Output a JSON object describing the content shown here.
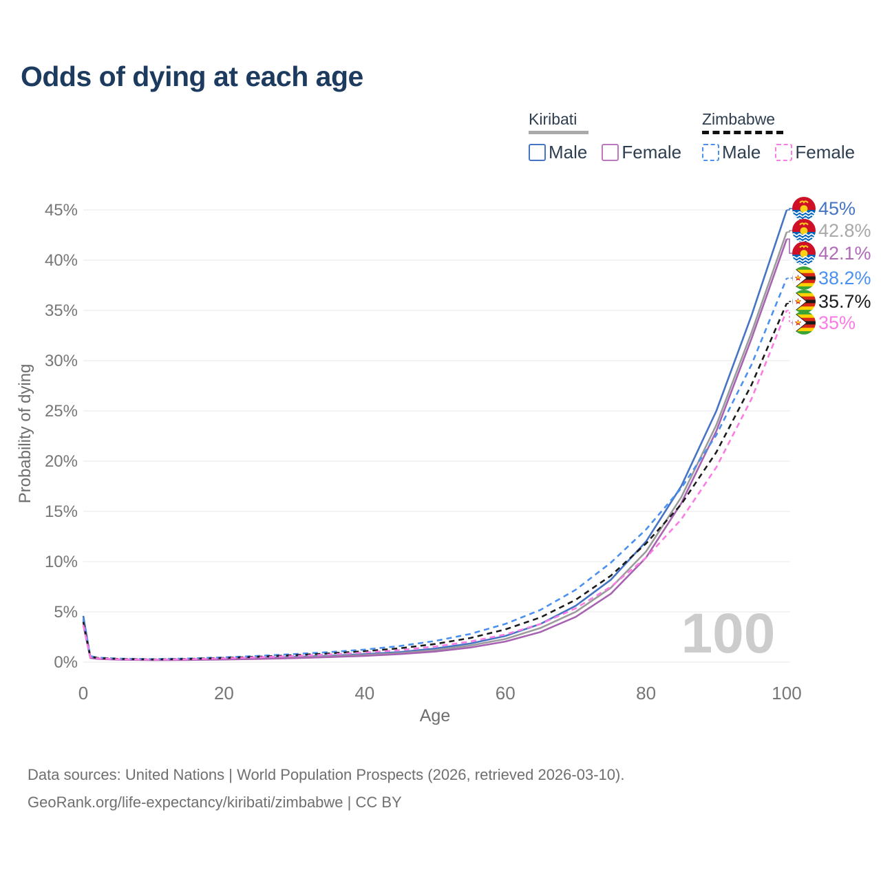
{
  "title": "Odds of dying at each age",
  "legend": {
    "groups": [
      {
        "country": "Kiribati",
        "line_style": "solid",
        "underline_color": "#a9a9a9",
        "items": [
          {
            "label": "Male",
            "color": "#4574c4"
          },
          {
            "label": "Female",
            "color": "#bb78bd"
          }
        ]
      },
      {
        "country": "Zimbabwe",
        "line_style": "dashed",
        "underline_color": "#111111",
        "items": [
          {
            "label": "Male",
            "color": "#4a90ee"
          },
          {
            "label": "Female",
            "color": "#fb7be4"
          }
        ]
      }
    ]
  },
  "footer": {
    "line1": "Data sources: United Nations | World Population Prospects (2026, retrieved 2026-03-10).",
    "line2": "GeoRank.org/life-expectancy/kiribati/zimbabwe | CC BY"
  },
  "chart_data": {
    "type": "line",
    "title": "Odds of dying at each age",
    "xlabel": "Age",
    "ylabel": "Probability of dying",
    "xlim": [
      0,
      100
    ],
    "ylim": [
      0,
      45
    ],
    "xticks": [
      0,
      20,
      40,
      60,
      80,
      100
    ],
    "yticks": [
      0,
      5,
      10,
      15,
      20,
      25,
      30,
      35,
      40,
      45
    ],
    "grid": "horizontal-only",
    "grid_color": "#ececec",
    "tick_color": "#767676",
    "axis_title_color": "#6e6e6e",
    "age_watermark": "100",
    "watermark_color": "#cccccc",
    "legend_position": "top-right",
    "series": [
      {
        "name": "Kiribati Male",
        "country": "Kiribati",
        "sex": "male",
        "color": "#4574c4",
        "dashed": false,
        "flag": "kiribati",
        "end_label": "45%",
        "label_color": "#4574c4",
        "points": [
          [
            0,
            4.6
          ],
          [
            1,
            0.5
          ],
          [
            2,
            0.38
          ],
          [
            5,
            0.28
          ],
          [
            10,
            0.24
          ],
          [
            15,
            0.28
          ],
          [
            20,
            0.34
          ],
          [
            25,
            0.42
          ],
          [
            30,
            0.52
          ],
          [
            35,
            0.64
          ],
          [
            40,
            0.8
          ],
          [
            45,
            1.0
          ],
          [
            50,
            1.35
          ],
          [
            55,
            1.85
          ],
          [
            60,
            2.6
          ],
          [
            65,
            3.8
          ],
          [
            70,
            5.6
          ],
          [
            75,
            8.2
          ],
          [
            80,
            12.0
          ],
          [
            85,
            17.5
          ],
          [
            90,
            25.0
          ],
          [
            95,
            34.5
          ],
          [
            100,
            45.0
          ]
        ]
      },
      {
        "name": "Kiribati Both sexes",
        "country": "Kiribati",
        "sex": "both",
        "color": "#9b9b9b",
        "dashed": false,
        "flag": "kiribati",
        "end_label": "42.8%",
        "label_color": "#a8a8a8",
        "points": [
          [
            0,
            4.1
          ],
          [
            1,
            0.46
          ],
          [
            2,
            0.35
          ],
          [
            5,
            0.26
          ],
          [
            10,
            0.22
          ],
          [
            15,
            0.25
          ],
          [
            20,
            0.3
          ],
          [
            25,
            0.37
          ],
          [
            30,
            0.46
          ],
          [
            35,
            0.57
          ],
          [
            40,
            0.71
          ],
          [
            45,
            0.9
          ],
          [
            50,
            1.2
          ],
          [
            55,
            1.65
          ],
          [
            60,
            2.3
          ],
          [
            65,
            3.4
          ],
          [
            70,
            5.0
          ],
          [
            75,
            7.4
          ],
          [
            80,
            11.0
          ],
          [
            85,
            16.4
          ],
          [
            90,
            23.6
          ],
          [
            95,
            32.8
          ],
          [
            100,
            42.8
          ]
        ]
      },
      {
        "name": "Kiribati Female",
        "country": "Kiribati",
        "sex": "female",
        "color": "#a763b2",
        "dashed": false,
        "flag": "kiribati",
        "end_label": "42.1%",
        "label_color": "#b06ab8",
        "points": [
          [
            0,
            3.7
          ],
          [
            1,
            0.42
          ],
          [
            2,
            0.32
          ],
          [
            5,
            0.24
          ],
          [
            10,
            0.2
          ],
          [
            15,
            0.22
          ],
          [
            20,
            0.26
          ],
          [
            25,
            0.32
          ],
          [
            30,
            0.4
          ],
          [
            35,
            0.5
          ],
          [
            40,
            0.62
          ],
          [
            45,
            0.8
          ],
          [
            50,
            1.05
          ],
          [
            55,
            1.45
          ],
          [
            60,
            2.05
          ],
          [
            65,
            3.0
          ],
          [
            70,
            4.5
          ],
          [
            75,
            6.8
          ],
          [
            80,
            10.4
          ],
          [
            85,
            15.8
          ],
          [
            90,
            23.0
          ],
          [
            95,
            32.2
          ],
          [
            100,
            42.1
          ]
        ]
      },
      {
        "name": "Zimbabwe Male",
        "country": "Zimbabwe",
        "sex": "male",
        "color": "#4a90ee",
        "dashed": true,
        "flag": "zimbabwe",
        "end_label": "38.2%",
        "label_color": "#4a90ee",
        "points": [
          [
            0,
            4.3
          ],
          [
            1,
            0.6
          ],
          [
            2,
            0.45
          ],
          [
            5,
            0.35
          ],
          [
            10,
            0.3
          ],
          [
            15,
            0.36
          ],
          [
            20,
            0.48
          ],
          [
            25,
            0.62
          ],
          [
            30,
            0.8
          ],
          [
            35,
            1.0
          ],
          [
            40,
            1.25
          ],
          [
            45,
            1.6
          ],
          [
            50,
            2.1
          ],
          [
            55,
            2.8
          ],
          [
            60,
            3.8
          ],
          [
            65,
            5.2
          ],
          [
            70,
            7.2
          ],
          [
            75,
            9.9
          ],
          [
            80,
            13.2
          ],
          [
            85,
            17.3
          ],
          [
            90,
            22.6
          ],
          [
            95,
            29.6
          ],
          [
            100,
            38.2
          ]
        ]
      },
      {
        "name": "Zimbabwe Both sexes",
        "country": "Zimbabwe",
        "sex": "both",
        "color": "#1b1b1b",
        "dashed": true,
        "flag": "zimbabwe",
        "end_label": "35.7%",
        "label_color": "#1b1b1b",
        "points": [
          [
            0,
            4.0
          ],
          [
            1,
            0.55
          ],
          [
            2,
            0.42
          ],
          [
            5,
            0.32
          ],
          [
            10,
            0.27
          ],
          [
            15,
            0.32
          ],
          [
            20,
            0.42
          ],
          [
            25,
            0.54
          ],
          [
            30,
            0.69
          ],
          [
            35,
            0.86
          ],
          [
            40,
            1.08
          ],
          [
            45,
            1.38
          ],
          [
            50,
            1.8
          ],
          [
            55,
            2.4
          ],
          [
            60,
            3.25
          ],
          [
            65,
            4.45
          ],
          [
            70,
            6.2
          ],
          [
            75,
            8.6
          ],
          [
            80,
            11.8
          ],
          [
            85,
            15.7
          ],
          [
            90,
            20.9
          ],
          [
            95,
            27.6
          ],
          [
            100,
            35.7
          ]
        ]
      },
      {
        "name": "Zimbabwe Female",
        "country": "Zimbabwe",
        "sex": "female",
        "color": "#fb7be4",
        "dashed": true,
        "flag": "zimbabwe",
        "end_label": "35%",
        "label_color": "#fb7be4",
        "points": [
          [
            0,
            3.7
          ],
          [
            1,
            0.5
          ],
          [
            2,
            0.38
          ],
          [
            5,
            0.29
          ],
          [
            10,
            0.25
          ],
          [
            15,
            0.29
          ],
          [
            20,
            0.38
          ],
          [
            25,
            0.48
          ],
          [
            30,
            0.61
          ],
          [
            35,
            0.76
          ],
          [
            40,
            0.95
          ],
          [
            45,
            1.2
          ],
          [
            50,
            1.55
          ],
          [
            55,
            2.05
          ],
          [
            60,
            2.75
          ],
          [
            65,
            3.8
          ],
          [
            70,
            5.35
          ],
          [
            75,
            7.5
          ],
          [
            80,
            10.4
          ],
          [
            85,
            14.2
          ],
          [
            90,
            19.4
          ],
          [
            95,
            26.2
          ],
          [
            100,
            35.0
          ]
        ]
      }
    ]
  }
}
